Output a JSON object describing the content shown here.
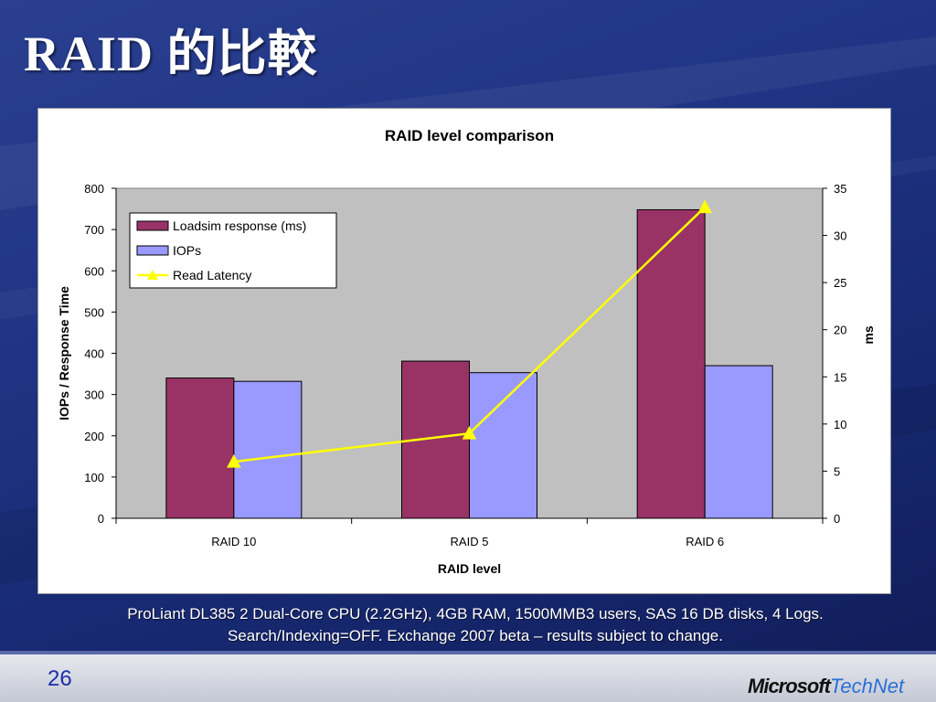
{
  "slide": {
    "title": "RAID  的比較",
    "caption_line1": "ProLiant DL385 2 Dual-Core CPU (2.2GHz), 4GB RAM, 1500MMB3 users,  SAS 16 DB disks, 4 Logs.",
    "caption_line2": "Search/Indexing=OFF. Exchange 2007 beta – results subject to change.",
    "page_number": "26",
    "logo_microsoft": "Microsoft",
    "logo_technet": "TechNet"
  },
  "chart_data": {
    "type": "bar",
    "title": "RAID level comparison",
    "xlabel": "RAID level",
    "ylabel": "IOPs / Response Time",
    "y2label": "ms",
    "categories": [
      "RAID 10",
      "RAID 5",
      "RAID 6"
    ],
    "ylim": [
      0,
      800
    ],
    "yticks": [
      0,
      100,
      200,
      300,
      400,
      500,
      600,
      700,
      800
    ],
    "y2lim": [
      0,
      35
    ],
    "y2ticks": [
      0,
      5,
      10,
      15,
      20,
      25,
      30,
      35
    ],
    "series": [
      {
        "name": "Loadsim response (ms)",
        "kind": "bar",
        "axis": "left",
        "color": "#993366",
        "values": [
          340,
          381,
          748
        ]
      },
      {
        "name": "IOPs",
        "kind": "bar",
        "axis": "left",
        "color": "#9999ff",
        "values": [
          332,
          353,
          370
        ]
      },
      {
        "name": "Read Latency",
        "kind": "line",
        "axis": "right",
        "color": "#ffff00",
        "values": [
          6,
          9,
          33
        ]
      }
    ],
    "grid": false,
    "plot_background": "#c0c0c0",
    "legend_position": "top-left"
  }
}
